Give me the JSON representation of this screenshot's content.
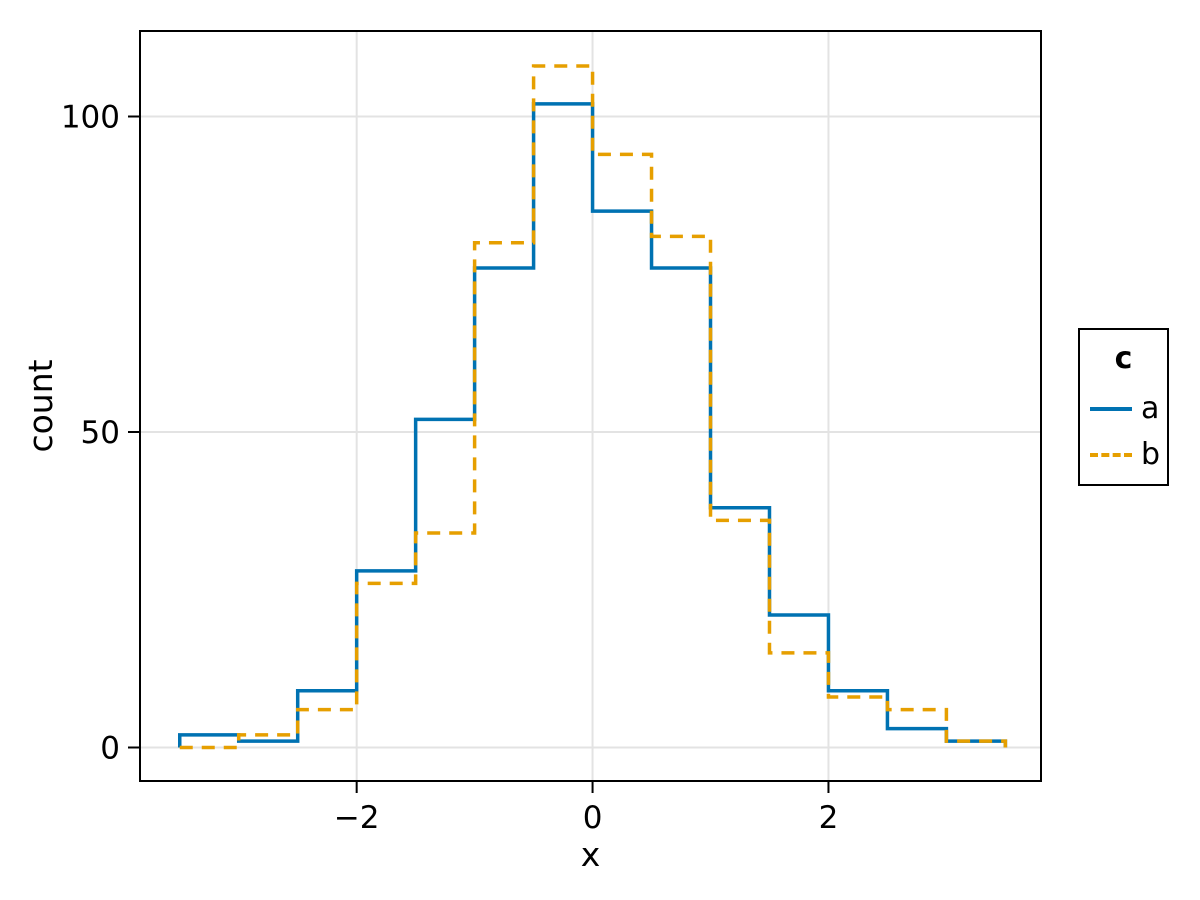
{
  "chart_data": {
    "type": "step-histogram",
    "title": "",
    "xlabel": "x",
    "ylabel": "count",
    "grid": true,
    "background": "#ffffff",
    "grid_color": "#e3e3e3",
    "spine_color": "#000000",
    "xlim": [
      -3.837,
      3.802
    ],
    "ylim": [
      -5.31,
      113.55
    ],
    "x_ticks": [
      {
        "value": -2,
        "label": "−2"
      },
      {
        "value": 0,
        "label": "0"
      },
      {
        "value": 2,
        "label": "2"
      }
    ],
    "y_ticks": [
      {
        "value": 0,
        "label": "0"
      },
      {
        "value": 50,
        "label": "50"
      },
      {
        "value": 100,
        "label": "100"
      }
    ],
    "bin_edges": [
      -3.5,
      -3.0,
      -2.5,
      -2.0,
      -1.5,
      -1.0,
      -0.5,
      0.0,
      0.5,
      1.0,
      1.5,
      2.0,
      2.5,
      3.0,
      3.5
    ],
    "series": [
      {
        "name": "a",
        "line_style": "solid",
        "color": "#0072B2",
        "counts": [
          2,
          1,
          9,
          28,
          52,
          76,
          102,
          85,
          76,
          38,
          21,
          9,
          3,
          1
        ]
      },
      {
        "name": "b",
        "line_style": "dashed",
        "color": "#E69F00",
        "counts": [
          0,
          2,
          6,
          26,
          34,
          80,
          108,
          94,
          81,
          36,
          15,
          8,
          6,
          1
        ]
      }
    ],
    "legend": {
      "title": "c",
      "position": "right-outside",
      "entries": [
        {
          "label": "a"
        },
        {
          "label": "b"
        }
      ]
    }
  }
}
